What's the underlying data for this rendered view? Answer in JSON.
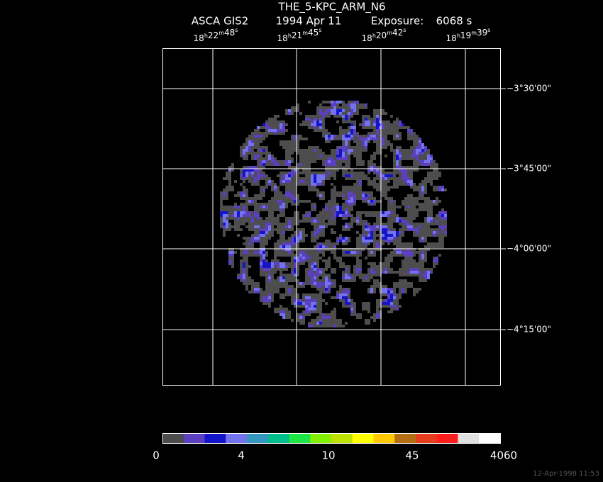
{
  "header": {
    "title": "THE_5-KPC_ARM_N6",
    "instrument": "ASCA GIS2",
    "date": "1994 Apr 11",
    "exposure_label": "Exposure:",
    "exposure": "6068 s"
  },
  "ra_units": [
    "h",
    "m",
    "s"
  ],
  "ra_labels": [
    [
      "18",
      "22",
      "48"
    ],
    [
      "18",
      "21",
      "45"
    ],
    [
      "18",
      "20",
      "42"
    ],
    [
      "18",
      "19",
      "39"
    ]
  ],
  "dec_labels": [
    "−3°30'00\"",
    "−3°45'00\"",
    "−4°00'00\"",
    "−4°15'00\""
  ],
  "colorbar": {
    "colors": [
      "#4d4d4d",
      "#5b3fbf",
      "#1414c8",
      "#7373f0",
      "#3296be",
      "#00be8c",
      "#1ee646",
      "#82f000",
      "#bee100",
      "#ffff00",
      "#ffc800",
      "#b46e14",
      "#e63c1e",
      "#ff1e1e",
      "#e1e1e1",
      "#ffffff"
    ],
    "labels": [
      "0",
      "4",
      "10",
      "45",
      "4060"
    ]
  },
  "timestamp": "12-Apr-1998 11:53"
}
